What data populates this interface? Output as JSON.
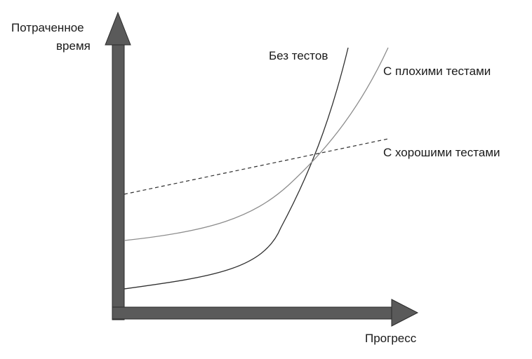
{
  "diagram": {
    "y_axis_label_line1": "Потраченное",
    "y_axis_label_line2": "время",
    "x_axis_label": "Прогресс",
    "curves": [
      {
        "id": "no-tests",
        "label": "Без тестов",
        "style": "solid",
        "color": "#2f2f2f"
      },
      {
        "id": "bad-tests",
        "label": "С плохими тестами",
        "style": "solid",
        "color": "#8c8c8c"
      },
      {
        "id": "good-tests",
        "label": "С хорошими тестами",
        "style": "dashed",
        "color": "#2f2f2f"
      }
    ],
    "colors": {
      "axis": "#5a5a5a",
      "axis_edge": "#2b2b2b",
      "text": "#1a1a1a"
    }
  }
}
